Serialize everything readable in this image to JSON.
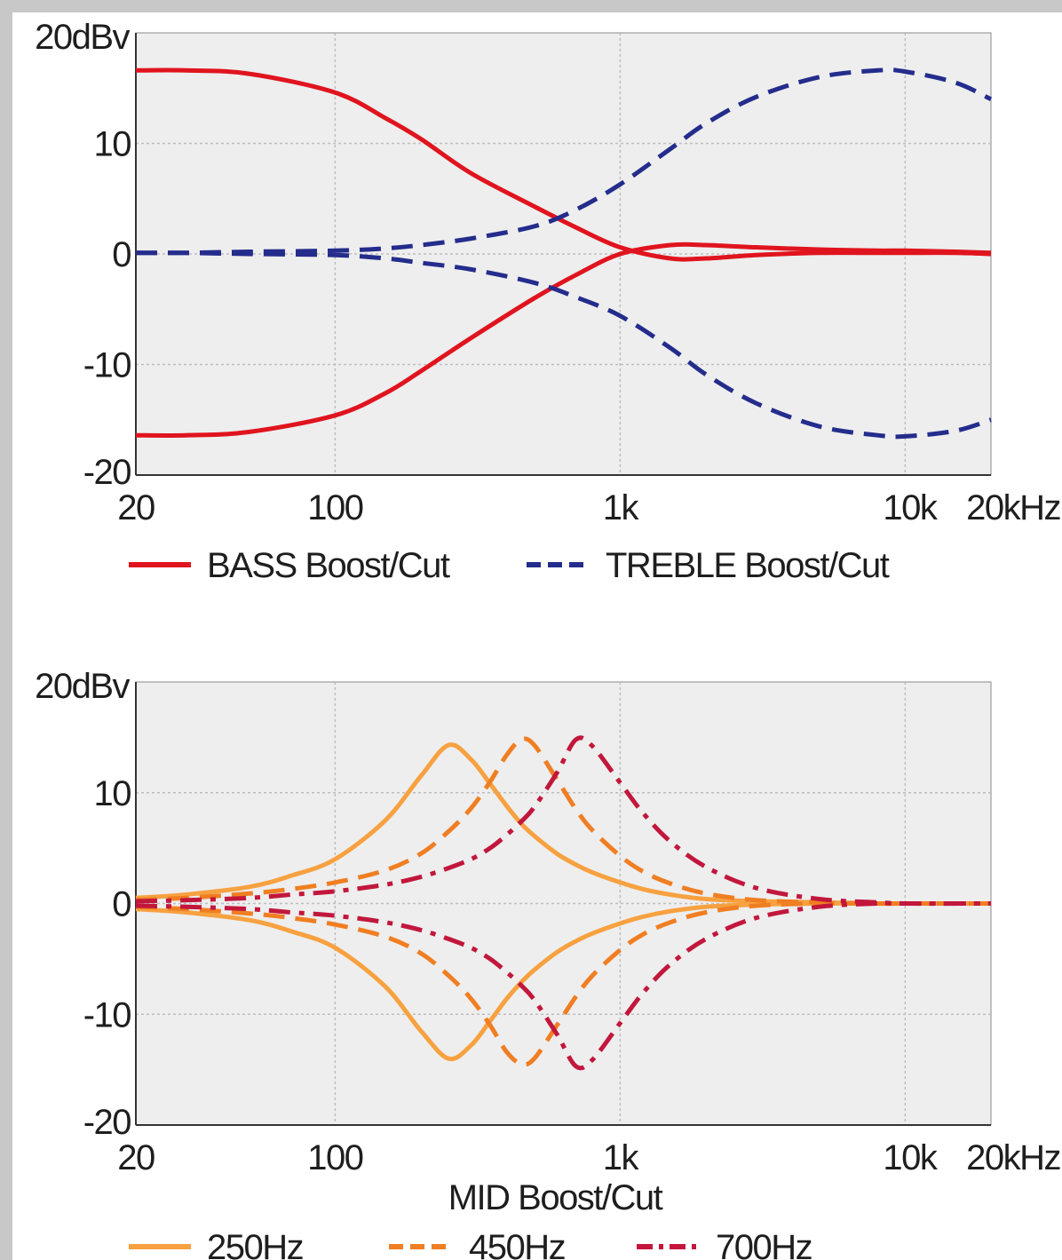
{
  "colors": {
    "page_bg": "#c8c8c8",
    "plot_bg": "#eeeeee",
    "grid": "#bdbdbd",
    "bass": "#e0141e",
    "treble": "#242c8c",
    "mid_250": "#f7a140",
    "mid_450": "#f07e22",
    "mid_700": "#c2173c"
  },
  "chart_data": [
    {
      "type": "line",
      "title": "",
      "x_scale": "log",
      "xlim": [
        20,
        20000
      ],
      "ylim": [
        -20,
        20
      ],
      "grid": true,
      "legend_placement": "bottom",
      "x_ticks": [
        {
          "value": 20,
          "label": "20"
        },
        {
          "value": 100,
          "label": "100"
        },
        {
          "value": 1000,
          "label": "1k"
        },
        {
          "value": 10000,
          "label": "10k"
        },
        {
          "value": 20000,
          "label": "20kHz"
        }
      ],
      "y_ticks": [
        {
          "value": 20,
          "label": "20dBv"
        },
        {
          "value": 10,
          "label": "10"
        },
        {
          "value": 0,
          "label": "0"
        },
        {
          "value": -10,
          "label": "-10"
        },
        {
          "value": -20,
          "label": "-20"
        }
      ],
      "x": [
        20,
        30,
        50,
        100,
        150,
        200,
        300,
        500,
        700,
        1000,
        1500,
        2000,
        3000,
        5000,
        8000,
        10000,
        15000,
        20000
      ],
      "series": [
        {
          "name": "BASS Boost/Cut",
          "style": "solid",
          "color_key": "bass",
          "values": [
            16.6,
            16.6,
            16.3,
            14.6,
            12.3,
            10.4,
            7.3,
            4.3,
            2.4,
            0.6,
            -0.4,
            -0.4,
            -0.1,
            0.1,
            0.1,
            0.1,
            0.1,
            0.0
          ]
        },
        {
          "name": "",
          "style": "solid",
          "color_key": "bass",
          "values": [
            -16.4,
            -16.4,
            -16.1,
            -14.6,
            -12.6,
            -10.6,
            -7.6,
            -4.0,
            -1.9,
            0.0,
            0.8,
            0.8,
            0.6,
            0.4,
            0.3,
            0.3,
            0.2,
            0.1
          ]
        },
        {
          "name": "TREBLE Boost/Cut",
          "style": "dashed",
          "color_key": "treble",
          "values": [
            0.1,
            0.1,
            0.2,
            0.3,
            0.5,
            0.8,
            1.4,
            2.5,
            4.0,
            6.3,
            9.5,
            11.8,
            14.2,
            16.0,
            16.6,
            16.5,
            15.5,
            14.0
          ]
        },
        {
          "name": "",
          "style": "dashed",
          "color_key": "treble",
          "values": [
            0.1,
            0.1,
            0.0,
            -0.1,
            -0.4,
            -0.8,
            -1.4,
            -2.6,
            -3.9,
            -5.6,
            -8.5,
            -10.9,
            -13.5,
            -15.6,
            -16.4,
            -16.5,
            -16.0,
            -15.0
          ]
        }
      ],
      "legend": [
        {
          "label": "BASS Boost/Cut",
          "style": "solid",
          "color_key": "bass"
        },
        {
          "label": "TREBLE Boost/Cut",
          "style": "dashed",
          "color_key": "treble"
        }
      ]
    },
    {
      "type": "line",
      "title": "MID Boost/Cut",
      "x_scale": "log",
      "xlim": [
        20,
        20000
      ],
      "ylim": [
        -20,
        20
      ],
      "grid": true,
      "legend_placement": "bottom",
      "x_ticks": [
        {
          "value": 20,
          "label": "20"
        },
        {
          "value": 100,
          "label": "100"
        },
        {
          "value": 1000,
          "label": "1k"
        },
        {
          "value": 10000,
          "label": "10k"
        },
        {
          "value": 20000,
          "label": "20kHz"
        }
      ],
      "y_ticks": [
        {
          "value": 20,
          "label": "20dBv"
        },
        {
          "value": 10,
          "label": "10"
        },
        {
          "value": 0,
          "label": "0"
        },
        {
          "value": -10,
          "label": "-10"
        },
        {
          "value": -20,
          "label": "-20"
        }
      ],
      "x": [
        20,
        30,
        50,
        70,
        100,
        150,
        200,
        250,
        300,
        350,
        400,
        450,
        500,
        600,
        700,
        800,
        1000,
        1200,
        1500,
        2000,
        3000,
        5000,
        8000,
        10000,
        20000
      ],
      "series": [
        {
          "name": "250Hz",
          "style": "solid",
          "color_key": "mid_250",
          "values": [
            0.5,
            0.8,
            1.5,
            2.5,
            4.0,
            7.5,
            11.5,
            14.3,
            13.0,
            10.8,
            8.8,
            7.2,
            6.1,
            4.5,
            3.5,
            2.8,
            1.9,
            1.3,
            0.8,
            0.4,
            0.2,
            0.1,
            0.0,
            0.0,
            0.0
          ]
        },
        {
          "name": "",
          "style": "solid",
          "color_key": "mid_250",
          "values": [
            -0.5,
            -0.8,
            -1.5,
            -2.5,
            -4.0,
            -7.5,
            -11.5,
            -14.0,
            -12.8,
            -10.6,
            -8.6,
            -7.1,
            -6.0,
            -4.4,
            -3.4,
            -2.7,
            -1.8,
            -1.2,
            -0.7,
            -0.3,
            -0.1,
            0.0,
            0.0,
            0.0,
            0.0
          ]
        },
        {
          "name": "450Hz",
          "style": "dashed",
          "color_key": "mid_450",
          "values": [
            0.3,
            0.5,
            0.9,
            1.3,
            1.9,
            3.0,
            4.5,
            6.5,
            8.6,
            11.0,
            13.4,
            14.8,
            14.3,
            11.2,
            8.5,
            6.6,
            4.3,
            2.9,
            1.8,
            0.9,
            0.3,
            0.1,
            0.0,
            0.0,
            0.0
          ]
        },
        {
          "name": "",
          "style": "dashed",
          "color_key": "mid_450",
          "values": [
            -0.3,
            -0.5,
            -0.9,
            -1.3,
            -1.9,
            -3.0,
            -4.5,
            -6.5,
            -8.6,
            -11.0,
            -13.4,
            -14.5,
            -14.0,
            -11.0,
            -8.4,
            -6.5,
            -4.2,
            -2.8,
            -1.7,
            -0.8,
            -0.2,
            0.0,
            0.0,
            0.0,
            0.0
          ]
        },
        {
          "name": "700Hz",
          "style": "dashdot",
          "color_key": "mid_700",
          "values": [
            0.2,
            0.3,
            0.5,
            0.8,
            1.1,
            1.7,
            2.4,
            3.2,
            4.0,
            5.0,
            6.2,
            7.4,
            8.7,
            11.8,
            14.8,
            14.2,
            10.9,
            8.2,
            5.6,
            3.3,
            1.4,
            0.4,
            0.1,
            0.0,
            0.0
          ]
        },
        {
          "name": "",
          "style": "dashdot",
          "color_key": "mid_700",
          "values": [
            -0.2,
            -0.3,
            -0.5,
            -0.8,
            -1.1,
            -1.7,
            -2.4,
            -3.2,
            -4.0,
            -5.0,
            -6.2,
            -7.4,
            -8.7,
            -11.8,
            -14.7,
            -14.1,
            -10.8,
            -8.1,
            -5.5,
            -3.2,
            -1.3,
            -0.3,
            0.0,
            0.0,
            0.0
          ]
        }
      ],
      "legend": [
        {
          "label": "250Hz",
          "style": "solid",
          "color_key": "mid_250"
        },
        {
          "label": "450Hz",
          "style": "dashed",
          "color_key": "mid_450"
        },
        {
          "label": "700Hz",
          "style": "dashdot",
          "color_key": "mid_700"
        }
      ]
    }
  ]
}
